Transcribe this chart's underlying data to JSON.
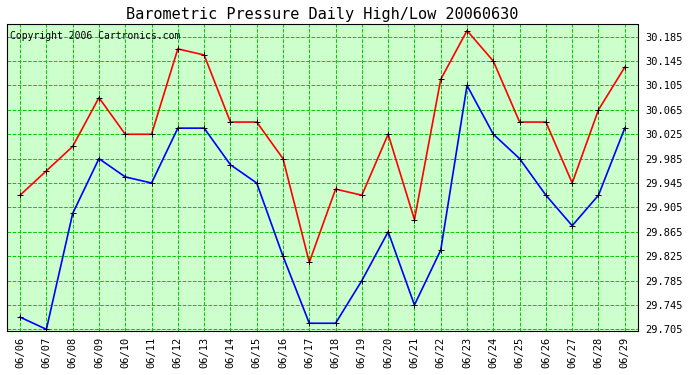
{
  "title": "Barometric Pressure Daily High/Low 20060630",
  "copyright": "Copyright 2006 Cartronics.com",
  "dates": [
    "06/06",
    "06/07",
    "06/08",
    "06/09",
    "06/10",
    "06/11",
    "06/12",
    "06/13",
    "06/14",
    "06/15",
    "06/16",
    "06/17",
    "06/18",
    "06/19",
    "06/20",
    "06/21",
    "06/22",
    "06/23",
    "06/24",
    "06/25",
    "06/26",
    "06/27",
    "06/28",
    "06/29"
  ],
  "high": [
    29.925,
    29.965,
    30.005,
    30.085,
    30.025,
    30.025,
    30.165,
    30.155,
    30.045,
    30.045,
    29.985,
    29.815,
    29.935,
    29.925,
    30.025,
    29.885,
    30.115,
    30.195,
    30.145,
    30.045,
    30.045,
    29.945,
    30.065,
    30.135
  ],
  "low": [
    29.725,
    29.705,
    29.895,
    29.985,
    29.955,
    29.945,
    30.035,
    30.035,
    29.975,
    29.945,
    29.825,
    29.715,
    29.715,
    29.785,
    29.865,
    29.745,
    29.835,
    30.105,
    30.025,
    29.985,
    29.925,
    29.875,
    29.925,
    30.035
  ],
  "y_min": 29.705,
  "y_max": 30.205,
  "y_ticks": [
    29.705,
    29.745,
    29.785,
    29.825,
    29.865,
    29.905,
    29.945,
    29.985,
    30.025,
    30.065,
    30.105,
    30.145,
    30.185
  ],
  "high_color": "#ff0000",
  "low_color": "#0000ff",
  "fig_bg_color": "#ffffff",
  "plot_bg_color": "#ccffcc",
  "grid_color": "#00cc00",
  "title_fontsize": 11,
  "copyright_fontsize": 7,
  "tick_fontsize": 7.5,
  "marker": "+",
  "marker_size": 5,
  "marker_color": "#cc0000",
  "line_width": 1.2
}
